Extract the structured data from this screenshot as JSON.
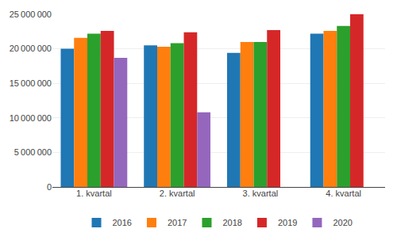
{
  "chart_data": {
    "type": "bar",
    "categories": [
      "1. kvartal",
      "2. kvartal",
      "3. kvartal",
      "4. kvartal"
    ],
    "series": [
      {
        "name": "2016",
        "values": [
          20000000,
          20500000,
          19400000,
          22200000
        ]
      },
      {
        "name": "2017",
        "values": [
          21600000,
          20300000,
          21000000,
          22600000
        ]
      },
      {
        "name": "2018",
        "values": [
          22200000,
          20800000,
          21000000,
          23300000
        ]
      },
      {
        "name": "2019",
        "values": [
          22600000,
          22400000,
          22700000,
          25000000
        ]
      },
      {
        "name": "2020",
        "values": [
          18700000,
          10800000,
          null,
          null
        ]
      }
    ],
    "ylim": [
      0,
      25000000
    ],
    "yticks": [
      0,
      {
        "value": 5000000,
        "label": "5 000 000"
      },
      {
        "value": 10000000,
        "label": "10 000 000"
      },
      {
        "value": 15000000,
        "label": "15 000 000"
      },
      {
        "value": 20000000,
        "label": "20 000 000"
      },
      {
        "value": 25000000,
        "label": "25 000 000"
      }
    ],
    "grid": true,
    "legend": "bottom"
  }
}
